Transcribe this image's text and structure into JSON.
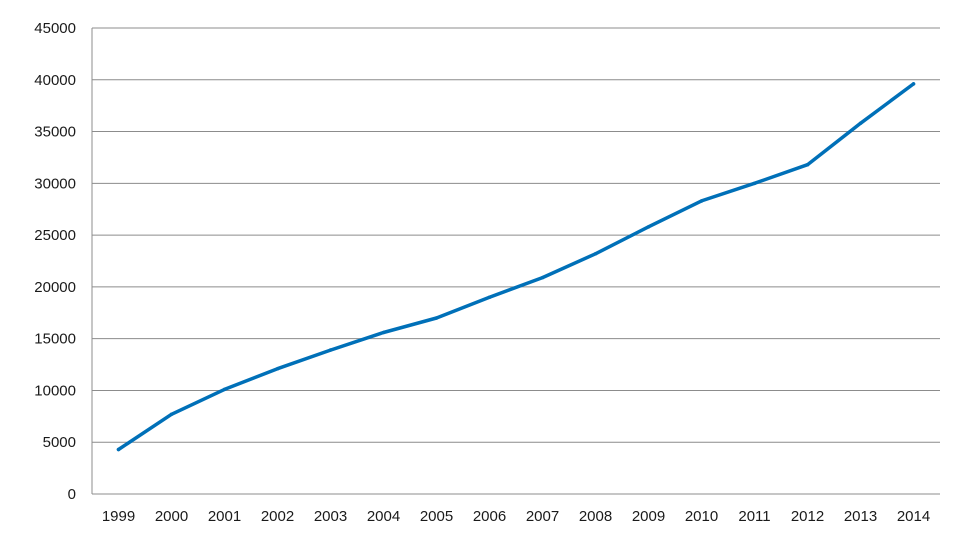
{
  "chart_data": {
    "type": "line",
    "title": "",
    "xlabel": "",
    "ylabel": "",
    "categories": [
      "1999",
      "2000",
      "2001",
      "2002",
      "2003",
      "2004",
      "2005",
      "2006",
      "2007",
      "2008",
      "2009",
      "2010",
      "2011",
      "2012",
      "2013",
      "2014"
    ],
    "series": [
      {
        "values": [
          4300,
          7700,
          10100,
          12100,
          13900,
          15600,
          17000,
          19000,
          20900,
          23200,
          25800,
          28300,
          30000,
          31800,
          35800,
          39600
        ],
        "color": "#0070b8"
      }
    ],
    "ylim": [
      0,
      45000
    ],
    "yticks": [
      "0",
      "5000",
      "10000",
      "15000",
      "20000",
      "25000",
      "30000",
      "35000",
      "40000",
      "45000"
    ],
    "grid": true,
    "legend": "none"
  }
}
